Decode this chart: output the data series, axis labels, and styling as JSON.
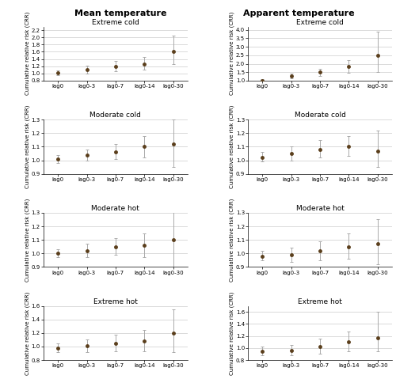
{
  "col_titles": [
    "Mean temperature",
    "Apparent temperature"
  ],
  "row_titles": [
    "Extreme cold",
    "Moderate cold",
    "Moderate hot",
    "Extreme hot"
  ],
  "x_labels": [
    "lag0",
    "lag0-3",
    "lag0-7",
    "lag0-14",
    "lag0-30"
  ],
  "x_positions": [
    0,
    1,
    2,
    3,
    4
  ],
  "panels": {
    "mean_extreme_cold": {
      "y": [
        1.01,
        1.1,
        1.2,
        1.27,
        1.6
      ],
      "ylow": [
        0.95,
        0.99,
        1.07,
        1.1,
        1.25
      ],
      "yhigh": [
        1.08,
        1.22,
        1.34,
        1.45,
        2.05
      ],
      "ylim": [
        0.8,
        2.3
      ],
      "yticks": [
        0.8,
        1.0,
        1.2,
        1.4,
        1.6,
        1.8,
        2.0,
        2.2
      ]
    },
    "mean_moderate_cold": {
      "y": [
        1.01,
        1.04,
        1.06,
        1.1,
        1.12
      ],
      "ylow": [
        0.98,
        1.0,
        1.01,
        1.02,
        0.95
      ],
      "yhigh": [
        1.04,
        1.08,
        1.12,
        1.18,
        1.3
      ],
      "ylim": [
        0.9,
        1.3
      ],
      "yticks": [
        0.9,
        1.0,
        1.1,
        1.2,
        1.3
      ]
    },
    "mean_moderate_hot": {
      "y": [
        1.0,
        1.02,
        1.05,
        1.06,
        1.1
      ],
      "ylow": [
        0.97,
        0.97,
        0.99,
        0.97,
        0.88
      ],
      "yhigh": [
        1.03,
        1.07,
        1.11,
        1.15,
        1.33
      ],
      "ylim": [
        0.9,
        1.3
      ],
      "yticks": [
        0.9,
        1.0,
        1.1,
        1.2,
        1.3
      ]
    },
    "mean_extreme_hot": {
      "y": [
        0.98,
        1.01,
        1.05,
        1.08,
        1.2
      ],
      "ylow": [
        0.92,
        0.92,
        0.93,
        0.93,
        0.92
      ],
      "yhigh": [
        1.05,
        1.1,
        1.18,
        1.24,
        1.55
      ],
      "ylim": [
        0.8,
        1.6
      ],
      "yticks": [
        0.8,
        1.0,
        1.2,
        1.4,
        1.6
      ]
    },
    "apparent_extreme_cold": {
      "y": [
        1.02,
        1.28,
        1.5,
        1.82,
        2.48
      ],
      "ylow": [
        0.97,
        1.15,
        1.3,
        1.48,
        1.5
      ],
      "yhigh": [
        1.07,
        1.42,
        1.72,
        2.22,
        3.9
      ],
      "ylim": [
        1.0,
        4.2
      ],
      "yticks": [
        1.0,
        1.5,
        2.0,
        2.5,
        3.0,
        3.5,
        4.0
      ]
    },
    "apparent_moderate_cold": {
      "y": [
        1.02,
        1.05,
        1.08,
        1.1,
        1.07
      ],
      "ylow": [
        0.99,
        1.0,
        1.02,
        1.03,
        0.95
      ],
      "yhigh": [
        1.06,
        1.1,
        1.15,
        1.18,
        1.22
      ],
      "ylim": [
        0.9,
        1.3
      ],
      "yticks": [
        0.9,
        1.0,
        1.1,
        1.2,
        1.3
      ]
    },
    "apparent_moderate_hot": {
      "y": [
        0.98,
        0.99,
        1.02,
        1.05,
        1.07
      ],
      "ylow": [
        0.95,
        0.94,
        0.95,
        0.96,
        0.92
      ],
      "yhigh": [
        1.02,
        1.04,
        1.09,
        1.15,
        1.25
      ],
      "ylim": [
        0.9,
        1.3
      ],
      "yticks": [
        0.9,
        1.0,
        1.1,
        1.2,
        1.3
      ]
    },
    "apparent_extreme_hot": {
      "y": [
        0.95,
        0.96,
        1.02,
        1.1,
        1.17
      ],
      "ylow": [
        0.88,
        0.88,
        0.9,
        0.95,
        0.95
      ],
      "yhigh": [
        1.03,
        1.05,
        1.15,
        1.27,
        1.6
      ],
      "ylim": [
        0.8,
        1.7
      ],
      "yticks": [
        0.8,
        1.0,
        1.2,
        1.4,
        1.6
      ]
    }
  },
  "dot_color": "#5a3e1b",
  "line_color": "#aaaaaa",
  "bg_color": "#ffffff",
  "grid_color": "#cccccc",
  "col_title_fontsize": 8,
  "subtitle_fontsize": 6.5,
  "tick_fontsize": 5,
  "ylabel_fontsize": 5
}
